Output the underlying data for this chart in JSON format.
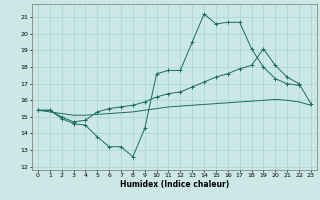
{
  "xlabel": "Humidex (Indice chaleur)",
  "bg_color": "#cce8e6",
  "grid_color": "#aad4d0",
  "line_color": "#1a6b5e",
  "xlim": [
    -0.5,
    23.5
  ],
  "ylim": [
    11.8,
    21.8
  ],
  "yticks": [
    12,
    13,
    14,
    15,
    16,
    17,
    18,
    19,
    20,
    21
  ],
  "xticks": [
    0,
    1,
    2,
    3,
    4,
    5,
    6,
    7,
    8,
    9,
    10,
    11,
    12,
    13,
    14,
    15,
    16,
    17,
    18,
    19,
    20,
    21,
    22,
    23
  ],
  "line1_x": [
    0,
    1,
    2,
    3,
    4,
    5,
    6,
    7,
    8,
    9,
    10,
    11,
    12,
    13,
    14,
    15,
    16,
    17,
    18,
    19,
    20,
    21,
    22
  ],
  "line1_y": [
    15.4,
    15.4,
    14.9,
    14.6,
    14.5,
    13.8,
    13.2,
    13.2,
    12.6,
    14.3,
    17.6,
    17.8,
    17.8,
    19.5,
    21.2,
    20.6,
    20.7,
    20.7,
    19.1,
    18.0,
    17.3,
    17.0,
    16.9
  ],
  "line2_x": [
    0,
    1,
    2,
    3,
    4,
    5,
    6,
    7,
    8,
    9,
    10,
    11,
    12,
    13,
    14,
    15,
    16,
    17,
    18,
    19,
    20,
    21,
    22,
    23
  ],
  "line2_y": [
    15.4,
    15.4,
    15.0,
    14.7,
    14.8,
    15.3,
    15.5,
    15.6,
    15.7,
    15.9,
    16.2,
    16.4,
    16.5,
    16.8,
    17.1,
    17.4,
    17.6,
    17.9,
    18.1,
    19.1,
    18.1,
    17.4,
    17.0,
    15.8
  ],
  "line3_x": [
    0,
    1,
    2,
    3,
    4,
    5,
    6,
    7,
    8,
    9,
    10,
    11,
    12,
    13,
    14,
    15,
    16,
    17,
    18,
    19,
    20,
    21,
    22,
    23
  ],
  "line3_y": [
    15.4,
    15.3,
    15.2,
    15.1,
    15.1,
    15.15,
    15.2,
    15.25,
    15.3,
    15.4,
    15.5,
    15.6,
    15.65,
    15.7,
    15.75,
    15.8,
    15.85,
    15.9,
    15.95,
    16.0,
    16.05,
    16.0,
    15.9,
    15.7
  ]
}
